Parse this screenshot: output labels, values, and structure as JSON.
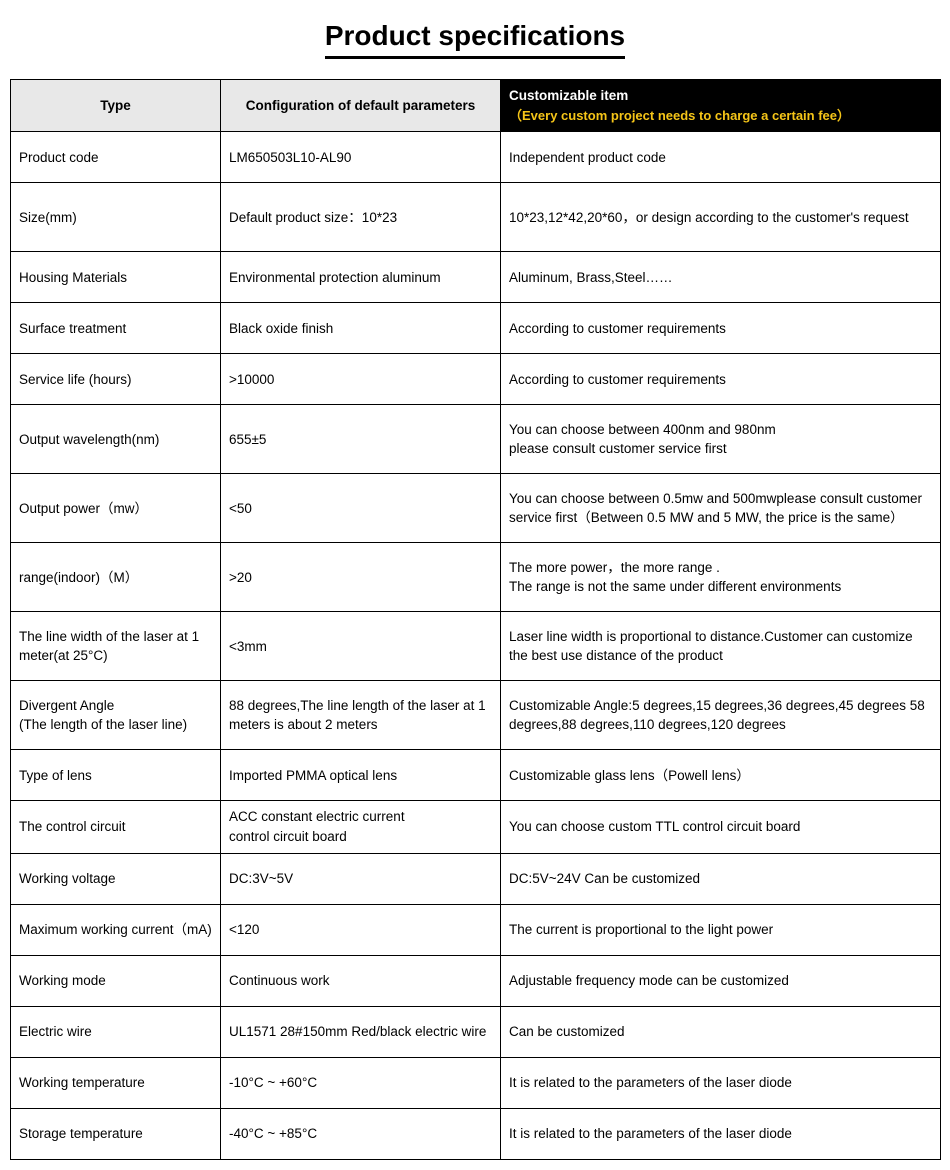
{
  "title": "Product specifications",
  "headers": {
    "type": "Type",
    "config": "Configuration of default parameters",
    "custom_main": "Customizable item",
    "custom_sub": "（Every custom project needs to charge a certain fee）"
  },
  "rows": [
    {
      "type": "Product code",
      "config": "LM650503L10-AL90",
      "custom": "Independent product code",
      "tall": false
    },
    {
      "type": "Size(mm)",
      "config": "Default product size：10*23",
      "custom": "10*23,12*42,20*60，or design according to the customer's request",
      "tall": true
    },
    {
      "type": "Housing Materials",
      "config": "Environmental protection aluminum",
      "custom": "Aluminum, Brass,Steel……",
      "tall": false
    },
    {
      "type": "Surface treatment",
      "config": "Black oxide finish",
      "custom": "According to customer requirements",
      "tall": false
    },
    {
      "type": "Service life (hours)",
      "config": ">10000",
      "custom": "According to customer requirements",
      "tall": false
    },
    {
      "type": "Output wavelength(nm)",
      "config": "655±5",
      "custom": "You can choose between 400nm and 980nm\nplease consult customer service first",
      "tall": true
    },
    {
      "type": "Output power（mw）",
      "config": "<50",
      "custom": "You can choose between 0.5mw and 500mwplease consult customer  service first（Between 0.5 MW and 5 MW, the price is the same）",
      "tall": true
    },
    {
      "type": "range(indoor)（M）",
      "config": ">20",
      "custom": "The more power，the more range .\nThe range is not the same under different environments",
      "tall": true
    },
    {
      "type": "The line width of the laser at 1 meter(at 25°C)",
      "config": "<3mm",
      "custom": "Laser line width is proportional to distance.Customer can customize the best use distance of the product",
      "tall": true
    },
    {
      "type": "Divergent Angle\n(The length of the laser line)",
      "config": "88 degrees,The line length of the laser at 1 meters is about 2 meters",
      "custom": "Customizable Angle:5 degrees,15 degrees,36 degrees,45 degrees  58 degrees,88 degrees,110 degrees,120 degrees",
      "tall": true
    },
    {
      "type": "Type of lens",
      "config": "Imported PMMA optical lens",
      "custom": "Customizable glass lens（Powell lens）",
      "tall": false
    },
    {
      "type": "The control circuit",
      "config": "ACC constant electric current\ncontrol circuit board",
      "custom": "You can choose custom TTL control circuit board",
      "tall": false
    },
    {
      "type": "Working voltage",
      "config": "DC:3V~5V",
      "custom": "DC:5V~24V Can be customized",
      "tall": false
    },
    {
      "type": "Maximum working current（mA)",
      "config": "<120",
      "custom": "The current is proportional to the light power",
      "tall": false
    },
    {
      "type": "Working mode",
      "config": "Continuous work",
      "custom": "Adjustable frequency mode can be customized",
      "tall": false
    },
    {
      "type": " Electric wire",
      "config": "UL1571  28#150mm Red/black electric wire",
      "custom": "Can be customized",
      "tall": false
    },
    {
      "type": "Working temperature",
      "config": "-10°C ~ +60°C",
      "custom": "It is related to the parameters of the laser diode",
      "tall": false
    },
    {
      "type": "Storage temperature",
      "config": "-40°C ~ +85°C",
      "custom": "It is related to the parameters of the laser diode",
      "tall": false
    }
  ]
}
